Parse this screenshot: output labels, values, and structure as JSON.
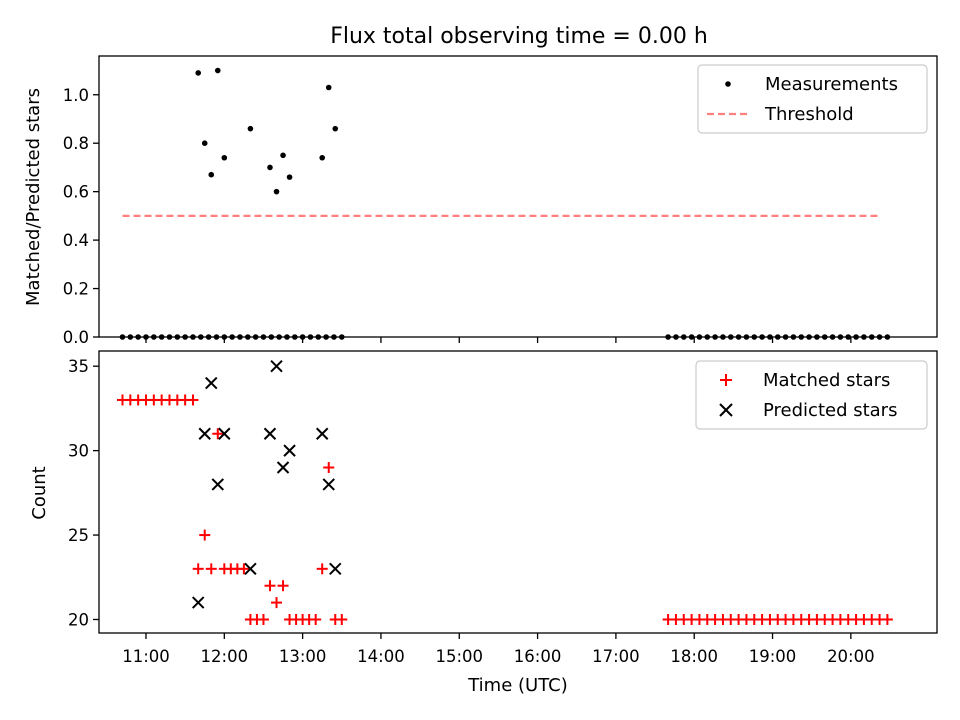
{
  "chart_data": [
    {
      "type": "scatter",
      "title": "Flux total observing time = 0.00 h",
      "xlabel": "",
      "ylabel": "Matched/Predicted stars",
      "xlim": [
        "10:24",
        "21:06"
      ],
      "ylim": [
        0,
        1.16
      ],
      "yticks": [
        "0.0",
        "0.2",
        "0.4",
        "0.6",
        "0.8",
        "1.0"
      ],
      "grid": false,
      "legend": {
        "placement": "top-right",
        "entries": [
          "Measurements",
          "Threshold"
        ]
      },
      "series": [
        {
          "name": "Measurements",
          "kind": "points",
          "color": "#000000",
          "points": [
            [
              "10:42",
              0
            ],
            [
              "10:48",
              0
            ],
            [
              "10:54",
              0
            ],
            [
              "11:00",
              0
            ],
            [
              "11:06",
              0
            ],
            [
              "11:12",
              0
            ],
            [
              "11:18",
              0
            ],
            [
              "11:24",
              0
            ],
            [
              "11:30",
              0
            ],
            [
              "11:36",
              0
            ],
            [
              "11:42",
              0
            ],
            [
              "11:48",
              0
            ],
            [
              "11:54",
              0
            ],
            [
              "12:00",
              0
            ],
            [
              "12:06",
              0
            ],
            [
              "12:12",
              0
            ],
            [
              "12:18",
              0
            ],
            [
              "12:24",
              0
            ],
            [
              "12:30",
              0
            ],
            [
              "12:36",
              0
            ],
            [
              "12:42",
              0
            ],
            [
              "12:48",
              0
            ],
            [
              "12:54",
              0
            ],
            [
              "13:00",
              0
            ],
            [
              "13:06",
              0
            ],
            [
              "13:12",
              0
            ],
            [
              "13:18",
              0
            ],
            [
              "13:24",
              0
            ],
            [
              "13:30",
              0
            ],
            [
              "11:40",
              1.09
            ],
            [
              "11:45",
              0.8
            ],
            [
              "11:50",
              0.67
            ],
            [
              "11:55",
              1.1
            ],
            [
              "12:00",
              0.74
            ],
            [
              "12:20",
              0.86
            ],
            [
              "12:35",
              0.7
            ],
            [
              "12:40",
              0.6
            ],
            [
              "12:45",
              0.75
            ],
            [
              "12:50",
              0.66
            ],
            [
              "13:15",
              0.74
            ],
            [
              "13:20",
              1.03
            ],
            [
              "13:25",
              0.86
            ],
            [
              "17:40",
              0
            ],
            [
              "17:46",
              0
            ],
            [
              "17:52",
              0
            ],
            [
              "17:58",
              0
            ],
            [
              "18:04",
              0
            ],
            [
              "18:10",
              0
            ],
            [
              "18:16",
              0
            ],
            [
              "18:22",
              0
            ],
            [
              "18:28",
              0
            ],
            [
              "18:34",
              0
            ],
            [
              "18:40",
              0
            ],
            [
              "18:46",
              0
            ],
            [
              "18:52",
              0
            ],
            [
              "18:58",
              0
            ],
            [
              "19:04",
              0
            ],
            [
              "19:10",
              0
            ],
            [
              "19:16",
              0
            ],
            [
              "19:22",
              0
            ],
            [
              "19:28",
              0
            ],
            [
              "19:34",
              0
            ],
            [
              "19:40",
              0
            ],
            [
              "19:46",
              0
            ],
            [
              "19:52",
              0
            ],
            [
              "19:58",
              0
            ],
            [
              "20:04",
              0
            ],
            [
              "20:10",
              0
            ],
            [
              "20:16",
              0
            ],
            [
              "20:22",
              0
            ],
            [
              "20:28",
              0
            ]
          ]
        },
        {
          "name": "Threshold",
          "kind": "dashed-line",
          "color": "#ff7f7f",
          "points": [
            [
              "10:42",
              0.5
            ],
            [
              "20:22",
              0.5
            ]
          ]
        }
      ]
    },
    {
      "type": "scatter",
      "title": "",
      "xlabel": "Time (UTC)",
      "ylabel": "Count",
      "xlim": [
        "10:24",
        "21:06"
      ],
      "xticks": [
        "11:00",
        "12:00",
        "13:00",
        "14:00",
        "15:00",
        "16:00",
        "17:00",
        "18:00",
        "19:00",
        "20:00"
      ],
      "ylim": [
        19.2,
        35.9
      ],
      "yticks": [
        "20",
        "25",
        "30",
        "35"
      ],
      "grid": false,
      "legend": {
        "placement": "top-right",
        "entries": [
          "Matched stars",
          "Predicted stars"
        ]
      },
      "series": [
        {
          "name": "Matched stars",
          "kind": "plus",
          "color": "#ff0000",
          "points": [
            [
              "10:42",
              33
            ],
            [
              "10:48",
              33
            ],
            [
              "10:54",
              33
            ],
            [
              "11:00",
              33
            ],
            [
              "11:06",
              33
            ],
            [
              "11:12",
              33
            ],
            [
              "11:18",
              33
            ],
            [
              "11:24",
              33
            ],
            [
              "11:30",
              33
            ],
            [
              "11:36",
              33
            ],
            [
              "11:40",
              23
            ],
            [
              "11:45",
              25
            ],
            [
              "11:50",
              23
            ],
            [
              "11:55",
              31
            ],
            [
              "12:00",
              23
            ],
            [
              "12:05",
              23
            ],
            [
              "12:10",
              23
            ],
            [
              "12:15",
              23
            ],
            [
              "12:20",
              20
            ],
            [
              "12:25",
              20
            ],
            [
              "12:30",
              20
            ],
            [
              "12:35",
              22
            ],
            [
              "12:40",
              21
            ],
            [
              "12:45",
              22
            ],
            [
              "12:50",
              20
            ],
            [
              "12:55",
              20
            ],
            [
              "13:00",
              20
            ],
            [
              "13:05",
              20
            ],
            [
              "13:10",
              20
            ],
            [
              "13:15",
              23
            ],
            [
              "13:20",
              29
            ],
            [
              "13:25",
              20
            ],
            [
              "13:30",
              20
            ],
            [
              "17:40",
              20
            ],
            [
              "17:46",
              20
            ],
            [
              "17:52",
              20
            ],
            [
              "17:58",
              20
            ],
            [
              "18:04",
              20
            ],
            [
              "18:10",
              20
            ],
            [
              "18:16",
              20
            ],
            [
              "18:22",
              20
            ],
            [
              "18:28",
              20
            ],
            [
              "18:34",
              20
            ],
            [
              "18:40",
              20
            ],
            [
              "18:46",
              20
            ],
            [
              "18:52",
              20
            ],
            [
              "18:58",
              20
            ],
            [
              "19:04",
              20
            ],
            [
              "19:10",
              20
            ],
            [
              "19:16",
              20
            ],
            [
              "19:22",
              20
            ],
            [
              "19:28",
              20
            ],
            [
              "19:34",
              20
            ],
            [
              "19:40",
              20
            ],
            [
              "19:46",
              20
            ],
            [
              "19:52",
              20
            ],
            [
              "19:58",
              20
            ],
            [
              "20:04",
              20
            ],
            [
              "20:10",
              20
            ],
            [
              "20:16",
              20
            ],
            [
              "20:22",
              20
            ],
            [
              "20:28",
              20
            ]
          ]
        },
        {
          "name": "Predicted stars",
          "kind": "x",
          "color": "#000000",
          "points": [
            [
              "11:40",
              21
            ],
            [
              "11:45",
              31
            ],
            [
              "11:50",
              34
            ],
            [
              "11:55",
              28
            ],
            [
              "12:00",
              31
            ],
            [
              "12:20",
              23
            ],
            [
              "12:35",
              31
            ],
            [
              "12:40",
              35
            ],
            [
              "12:45",
              29
            ],
            [
              "12:50",
              30
            ],
            [
              "13:15",
              31
            ],
            [
              "13:20",
              28
            ],
            [
              "13:25",
              23
            ]
          ]
        }
      ]
    }
  ]
}
